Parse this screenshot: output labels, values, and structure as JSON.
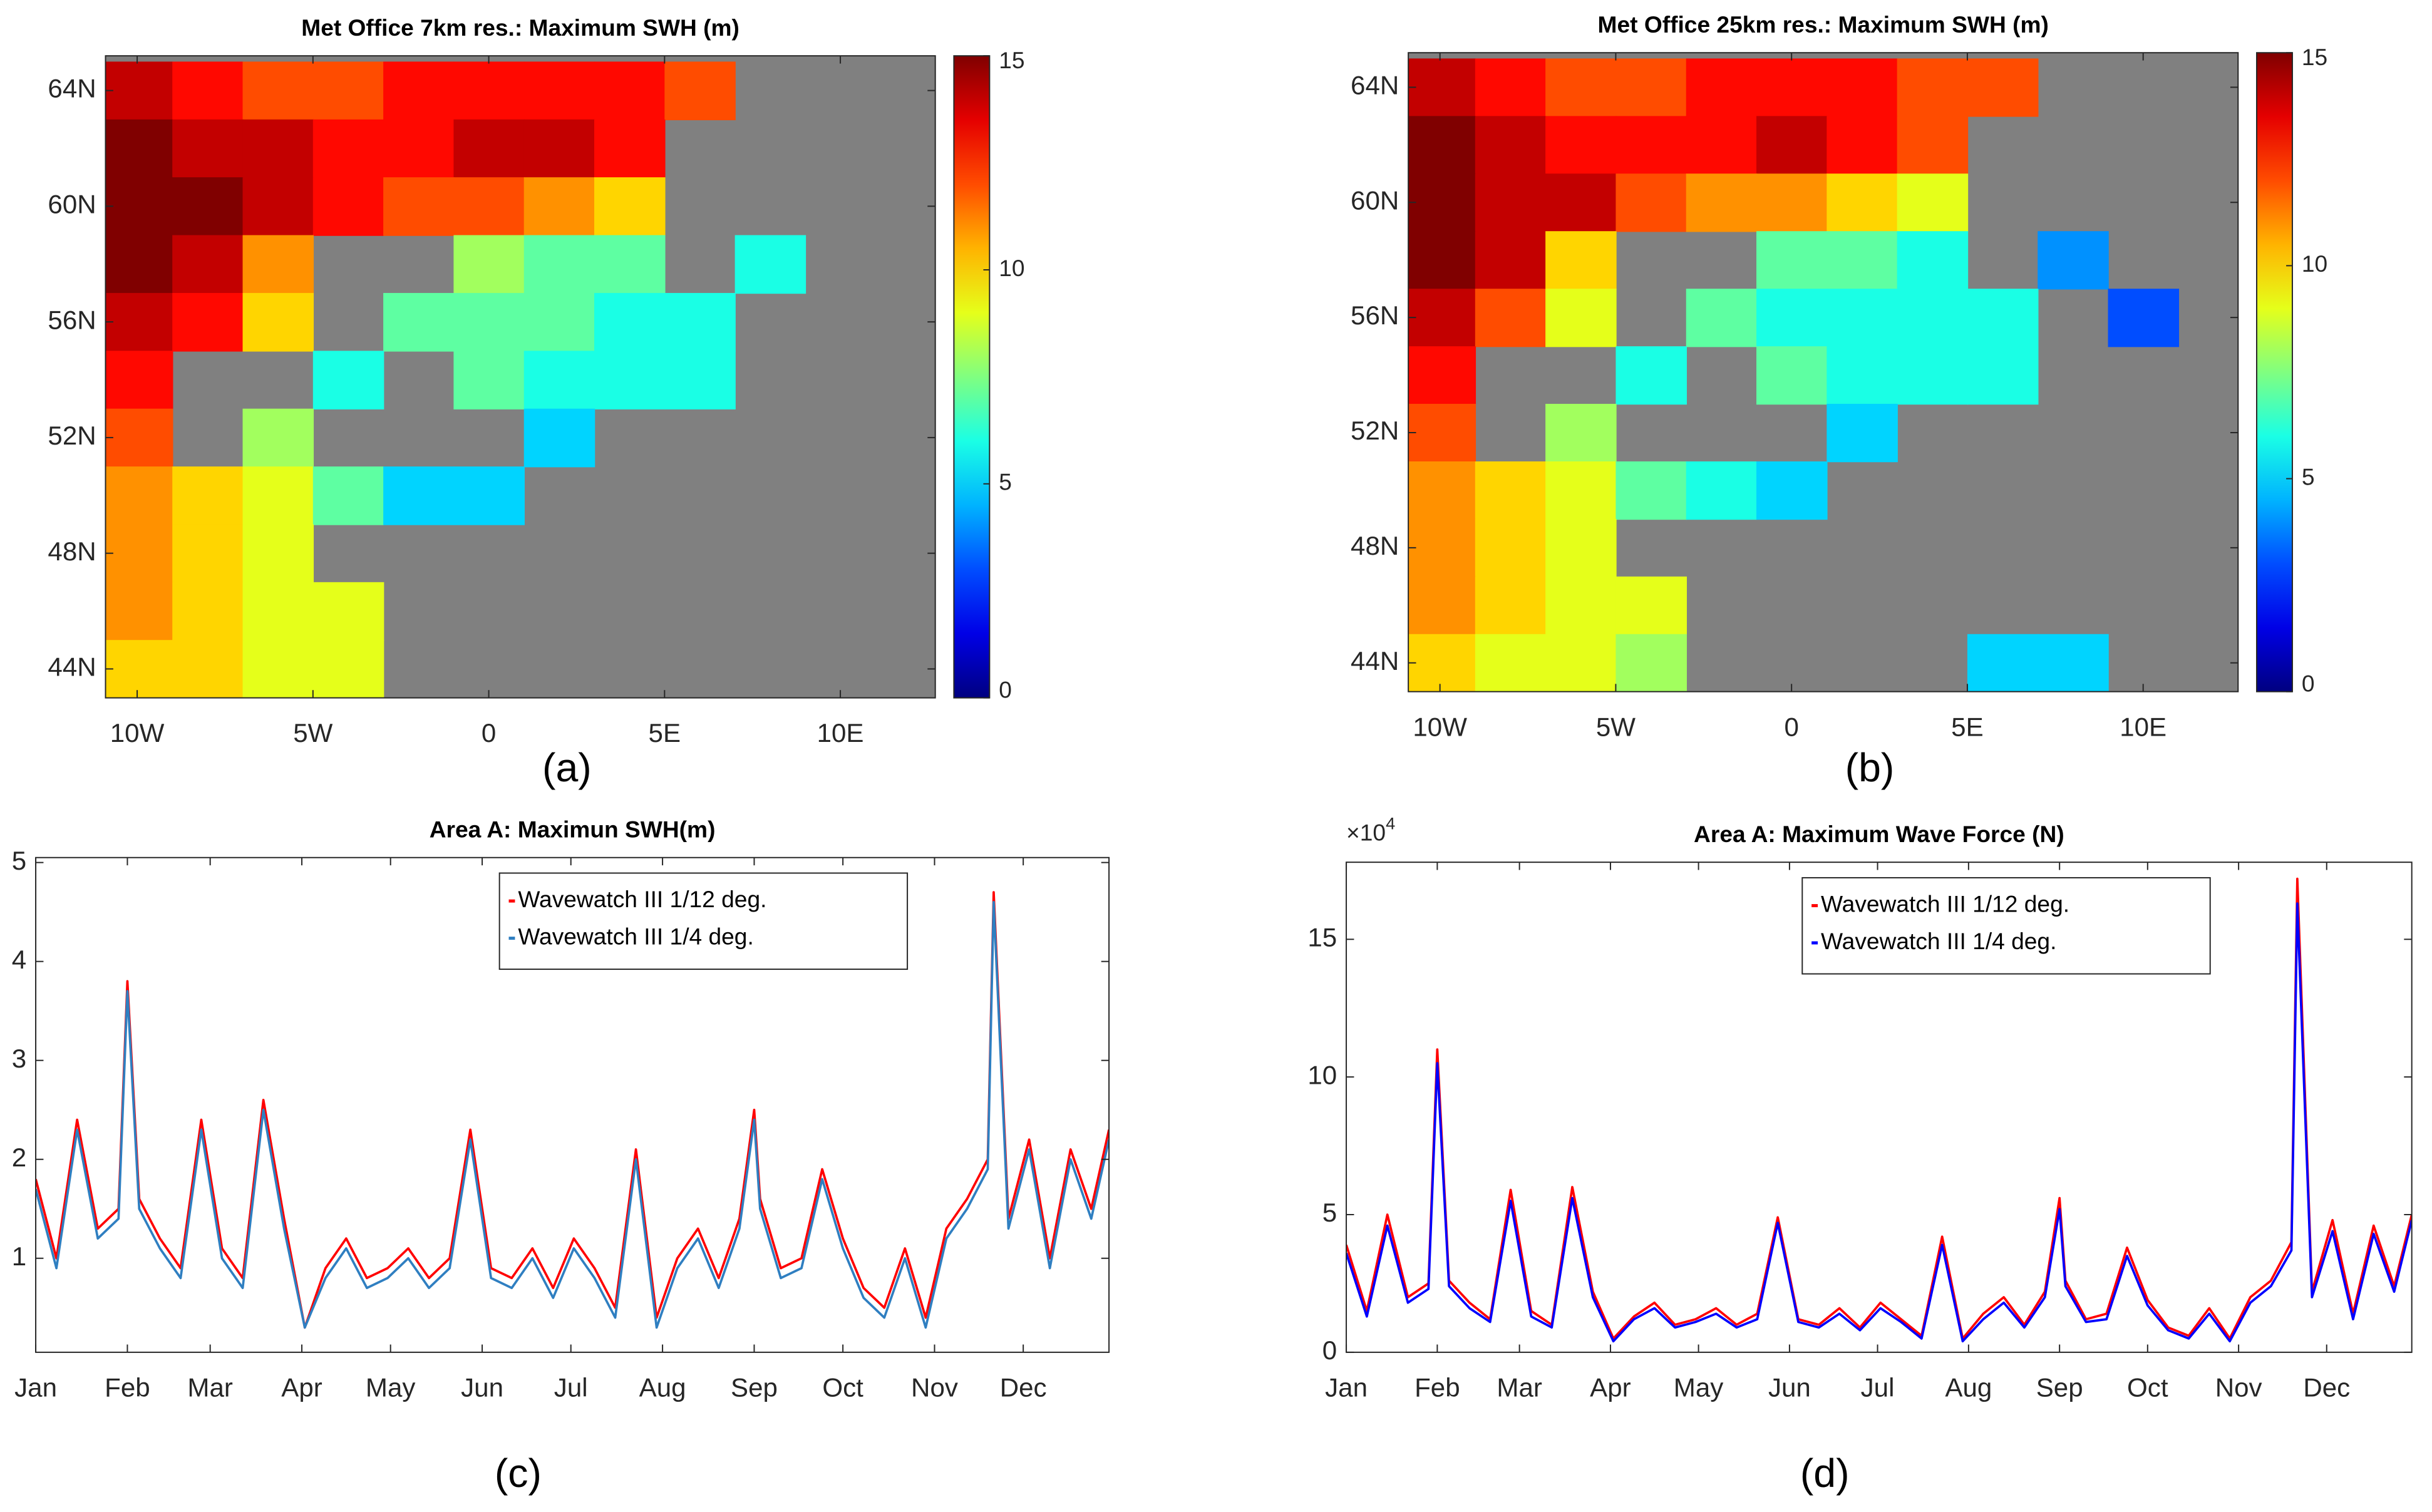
{
  "chart_data": [
    {
      "type": "heatmap",
      "title": "Met Office 7km res.: Maximum SWH (m)",
      "panel_label": "(a)",
      "colormap": "jet",
      "xlim": [
        -10.9,
        12.7
      ],
      "ylim": [
        43,
        65.2
      ],
      "xticks": [
        {
          "value": -10,
          "label": "10W"
        },
        {
          "value": -5,
          "label": "5W"
        },
        0,
        {
          "value": 5,
          "label": "5E"
        },
        {
          "value": 10,
          "label": "10E"
        }
      ],
      "yticks": [
        {
          "value": 44,
          "label": "44N"
        },
        {
          "value": 48,
          "label": "48N"
        },
        {
          "value": 52,
          "label": "52N"
        },
        {
          "value": 56,
          "label": "56N"
        },
        {
          "value": 60,
          "label": "60N"
        },
        {
          "value": 64,
          "label": "64N"
        }
      ],
      "clim": [
        0,
        15
      ],
      "cticks": [
        0,
        5,
        10,
        15
      ],
      "land_color": "#808080",
      "x": [
        -10,
        -8,
        -6,
        -4,
        -2,
        0,
        2,
        4,
        6,
        8,
        10,
        12
      ],
      "y": [
        64,
        62,
        60,
        58,
        56,
        54,
        52,
        50,
        48,
        46,
        44
      ],
      "values": [
        [
          14,
          13,
          12,
          12,
          13,
          13,
          13,
          13,
          12,
          null,
          null,
          null
        ],
        [
          15,
          14,
          14,
          13,
          13,
          14,
          14,
          13,
          null,
          null,
          null,
          null
        ],
        [
          15,
          15,
          14,
          13,
          12,
          12,
          11,
          10,
          null,
          null,
          null,
          null
        ],
        [
          15,
          14,
          11,
          null,
          null,
          8,
          7,
          7,
          null,
          6,
          null,
          null
        ],
        [
          14,
          13,
          10,
          null,
          7,
          7,
          7,
          6,
          6,
          null,
          null,
          null
        ],
        [
          13,
          null,
          null,
          6,
          null,
          7,
          6,
          6,
          6,
          null,
          null,
          null
        ],
        [
          12,
          null,
          8,
          null,
          null,
          null,
          5,
          null,
          null,
          null,
          null,
          null
        ],
        [
          11,
          10,
          9,
          7,
          5,
          5,
          null,
          null,
          null,
          null,
          null,
          null
        ],
        [
          11,
          10,
          9,
          null,
          null,
          null,
          null,
          null,
          null,
          null,
          null,
          null
        ],
        [
          11,
          10,
          9,
          9,
          null,
          null,
          null,
          null,
          null,
          null,
          null,
          null
        ],
        [
          10,
          10,
          9,
          9,
          null,
          null,
          null,
          null,
          null,
          null,
          null,
          null
        ]
      ]
    },
    {
      "type": "heatmap",
      "title": "Met Office 25km res.: Maximum SWH (m)",
      "panel_label": "(b)",
      "colormap": "jet",
      "xlim": [
        -10.9,
        12.7
      ],
      "ylim": [
        43,
        65.2
      ],
      "xticks": [
        {
          "value": -10,
          "label": "10W"
        },
        {
          "value": -5,
          "label": "5W"
        },
        0,
        {
          "value": 5,
          "label": "5E"
        },
        {
          "value": 10,
          "label": "10E"
        }
      ],
      "yticks": [
        {
          "value": 44,
          "label": "44N"
        },
        {
          "value": 48,
          "label": "48N"
        },
        {
          "value": 52,
          "label": "52N"
        },
        {
          "value": 56,
          "label": "56N"
        },
        {
          "value": 60,
          "label": "60N"
        },
        {
          "value": 64,
          "label": "64N"
        }
      ],
      "clim": [
        0,
        15
      ],
      "cticks": [
        0,
        5,
        10,
        15
      ],
      "land_color": "#808080",
      "x": [
        -10,
        -8,
        -6,
        -4,
        -2,
        0,
        2,
        4,
        6,
        8,
        10,
        12
      ],
      "y": [
        64,
        62,
        60,
        58,
        56,
        54,
        52,
        50,
        48,
        46,
        44
      ],
      "values": [
        [
          14,
          13,
          12,
          12,
          13,
          13,
          13,
          12,
          12,
          null,
          null,
          null
        ],
        [
          15,
          14,
          13,
          13,
          13,
          14,
          13,
          12,
          null,
          null,
          null,
          null
        ],
        [
          15,
          14,
          14,
          12,
          11,
          11,
          10,
          9,
          null,
          null,
          null,
          null
        ],
        [
          15,
          14,
          10,
          null,
          null,
          7,
          7,
          6,
          null,
          4,
          null,
          null
        ],
        [
          14,
          12,
          9,
          null,
          7,
          6,
          6,
          6,
          6,
          null,
          3,
          null
        ],
        [
          13,
          null,
          null,
          6,
          null,
          7,
          6,
          6,
          6,
          null,
          null,
          null
        ],
        [
          12,
          null,
          8,
          null,
          null,
          null,
          5,
          null,
          null,
          null,
          null,
          null
        ],
        [
          11,
          10,
          9,
          7,
          6,
          5,
          null,
          null,
          null,
          null,
          null,
          null
        ],
        [
          11,
          10,
          9,
          null,
          null,
          null,
          null,
          null,
          null,
          null,
          null,
          null
        ],
        [
          11,
          10,
          9,
          9,
          null,
          null,
          null,
          null,
          null,
          null,
          null,
          null
        ],
        [
          10,
          9,
          9,
          8,
          null,
          null,
          null,
          null,
          5,
          5,
          null,
          null
        ]
      ]
    },
    {
      "type": "line",
      "title": "Area A: Maximun SWH(m)",
      "panel_label": "(c)",
      "legend": "upper right",
      "xlim": [
        1,
        364
      ],
      "ylim": [
        0.05,
        5.05
      ],
      "yticks": [
        1,
        2,
        3,
        4,
        5
      ],
      "xticks": [
        {
          "value": 1,
          "label": "Jan"
        },
        {
          "value": 32,
          "label": "Feb"
        },
        {
          "value": 60,
          "label": "Mar"
        },
        {
          "value": 91,
          "label": "Apr"
        },
        {
          "value": 121,
          "label": "May"
        },
        {
          "value": 152,
          "label": "Jun"
        },
        {
          "value": 182,
          "label": "Jul"
        },
        {
          "value": 213,
          "label": "Aug"
        },
        {
          "value": 244,
          "label": "Sep"
        },
        {
          "value": 274,
          "label": "Oct"
        },
        {
          "value": 305,
          "label": "Nov"
        },
        {
          "value": 335,
          "label": "Dec"
        }
      ],
      "x": [
        1,
        8,
        15,
        22,
        29,
        32,
        36,
        43,
        50,
        57,
        64,
        71,
        78,
        85,
        92,
        99,
        106,
        113,
        120,
        127,
        134,
        141,
        148,
        155,
        162,
        169,
        176,
        183,
        190,
        197,
        204,
        211,
        218,
        225,
        232,
        239,
        244,
        246,
        253,
        260,
        267,
        274,
        281,
        288,
        295,
        302,
        309,
        316,
        323,
        325,
        330,
        337,
        344,
        351,
        358,
        364
      ],
      "series": [
        {
          "name": "Wavewatch III 1/12 deg.",
          "color": "#ff0000",
          "values": [
            1.8,
            1.0,
            2.4,
            1.3,
            1.5,
            3.8,
            1.6,
            1.2,
            0.9,
            2.4,
            1.1,
            0.8,
            2.6,
            1.4,
            0.3,
            0.9,
            1.2,
            0.8,
            0.9,
            1.1,
            0.8,
            1.0,
            2.3,
            0.9,
            0.8,
            1.1,
            0.7,
            1.2,
            0.9,
            0.5,
            2.1,
            0.4,
            1.0,
            1.3,
            0.8,
            1.4,
            2.5,
            1.6,
            0.9,
            1.0,
            1.9,
            1.2,
            0.7,
            0.5,
            1.1,
            0.4,
            1.3,
            1.6,
            2.0,
            4.7,
            1.4,
            2.2,
            1.0,
            2.1,
            1.5,
            2.3
          ]
        },
        {
          "name": "Wavewatch III 1/4 deg.",
          "color": "#2f7fc1",
          "values": [
            1.7,
            0.9,
            2.3,
            1.2,
            1.4,
            3.7,
            1.5,
            1.1,
            0.8,
            2.3,
            1.0,
            0.7,
            2.5,
            1.3,
            0.3,
            0.8,
            1.1,
            0.7,
            0.8,
            1.0,
            0.7,
            0.9,
            2.2,
            0.8,
            0.7,
            1.0,
            0.6,
            1.1,
            0.8,
            0.4,
            2.0,
            0.3,
            0.9,
            1.2,
            0.7,
            1.3,
            2.4,
            1.5,
            0.8,
            0.9,
            1.8,
            1.1,
            0.6,
            0.4,
            1.0,
            0.3,
            1.2,
            1.5,
            1.9,
            4.6,
            1.3,
            2.1,
            0.9,
            2.0,
            1.4,
            2.2
          ]
        }
      ]
    },
    {
      "type": "line",
      "title": "Area A: Maximum Wave Force (N)",
      "panel_label": "(d)",
      "legend": "upper right",
      "y_multiplier": {
        "base": "×10",
        "exponent": "4"
      },
      "xlim": [
        1,
        364
      ],
      "ylim": [
        0,
        17.8
      ],
      "yticks": [
        0,
        5,
        10,
        15
      ],
      "xticks": [
        {
          "value": 1,
          "label": "Jan"
        },
        {
          "value": 32,
          "label": "Feb"
        },
        {
          "value": 60,
          "label": "Mar"
        },
        {
          "value": 91,
          "label": "Apr"
        },
        {
          "value": 121,
          "label": "May"
        },
        {
          "value": 152,
          "label": "Jun"
        },
        {
          "value": 182,
          "label": "Jul"
        },
        {
          "value": 213,
          "label": "Aug"
        },
        {
          "value": 244,
          "label": "Sep"
        },
        {
          "value": 274,
          "label": "Oct"
        },
        {
          "value": 305,
          "label": "Nov"
        },
        {
          "value": 335,
          "label": "Dec"
        }
      ],
      "x": [
        1,
        8,
        15,
        22,
        29,
        32,
        36,
        43,
        50,
        57,
        64,
        71,
        78,
        85,
        92,
        99,
        106,
        113,
        120,
        127,
        134,
        141,
        148,
        155,
        162,
        169,
        176,
        183,
        190,
        197,
        204,
        211,
        218,
        225,
        232,
        239,
        244,
        246,
        253,
        260,
        267,
        274,
        281,
        288,
        295,
        302,
        309,
        316,
        323,
        325,
        330,
        337,
        344,
        351,
        358,
        364
      ],
      "series": [
        {
          "name": "Wavewatch III 1/12 deg.",
          "color": "#ff0000",
          "values": [
            3.9,
            1.5,
            5.0,
            2.0,
            2.5,
            11.0,
            2.6,
            1.8,
            1.2,
            5.9,
            1.5,
            1.0,
            6.0,
            2.2,
            0.5,
            1.3,
            1.8,
            1.0,
            1.2,
            1.6,
            1.0,
            1.4,
            4.9,
            1.2,
            1.0,
            1.6,
            0.9,
            1.8,
            1.2,
            0.6,
            4.2,
            0.5,
            1.4,
            2.0,
            1.0,
            2.2,
            5.6,
            2.6,
            1.2,
            1.4,
            3.8,
            1.9,
            0.9,
            0.6,
            1.6,
            0.5,
            2.0,
            2.6,
            4.0,
            17.2,
            2.2,
            4.8,
            1.4,
            4.6,
            2.4,
            5.0
          ]
        },
        {
          "name": "Wavewatch III 1/4 deg.",
          "color": "#0000ff",
          "values": [
            3.6,
            1.3,
            4.6,
            1.8,
            2.3,
            10.5,
            2.4,
            1.6,
            1.1,
            5.5,
            1.3,
            0.9,
            5.6,
            2.0,
            0.4,
            1.2,
            1.6,
            0.9,
            1.1,
            1.4,
            0.9,
            1.2,
            4.7,
            1.1,
            0.9,
            1.4,
            0.8,
            1.6,
            1.1,
            0.5,
            3.9,
            0.4,
            1.2,
            1.8,
            0.9,
            2.0,
            5.2,
            2.4,
            1.1,
            1.2,
            3.5,
            1.7,
            0.8,
            0.5,
            1.4,
            0.4,
            1.8,
            2.4,
            3.7,
            16.3,
            2.0,
            4.4,
            1.2,
            4.3,
            2.2,
            4.8
          ]
        }
      ]
    }
  ]
}
